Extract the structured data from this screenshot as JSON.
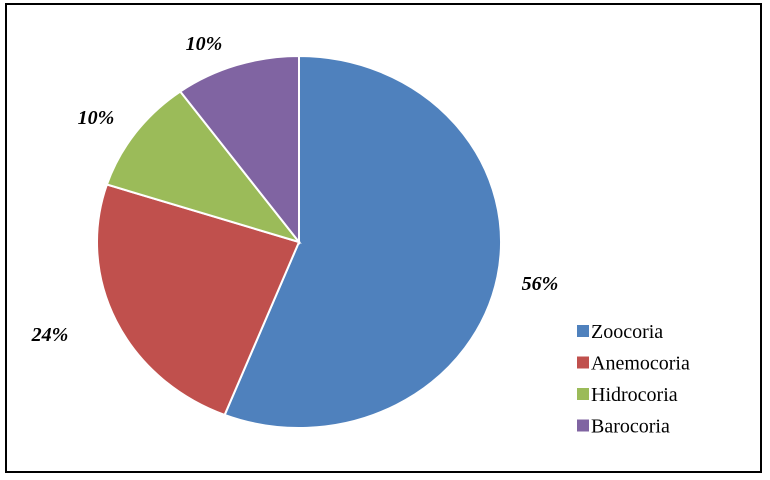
{
  "chart_data": {
    "type": "pie",
    "categories": [
      "Zoocoria",
      "Anemocoria",
      "Hidrocoria",
      "Barocoria"
    ],
    "values": [
      56,
      24,
      10,
      10
    ],
    "labels": [
      "56%",
      "24%",
      "10%",
      "10%"
    ],
    "colors": [
      "#4F81BD",
      "#C0504D",
      "#9BBB59",
      "#8064A2"
    ],
    "start": "12 o'clock",
    "direction": "clockwise",
    "legend_position": "right",
    "title": ""
  }
}
